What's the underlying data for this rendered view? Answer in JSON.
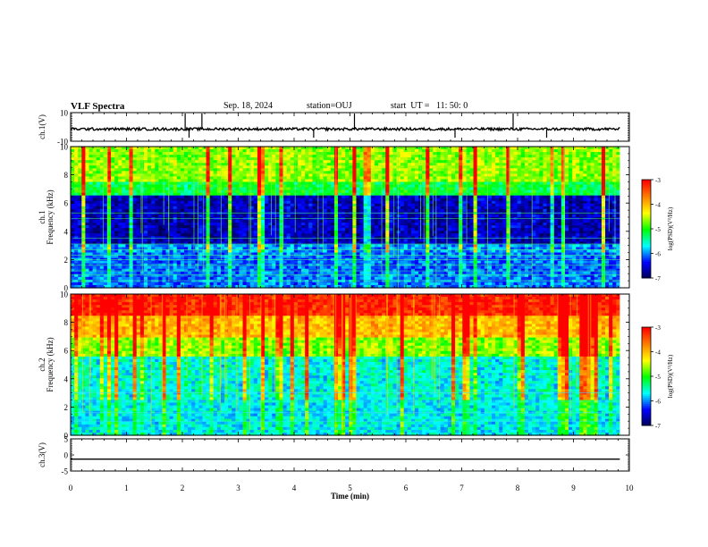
{
  "header": {
    "title": "VLF Spectra",
    "date": "Sep. 18, 2024",
    "station": "station=OUJ",
    "start_ut": "start  UT =   11: 50: 0"
  },
  "chart_data": [
    {
      "type": "line",
      "name": "ch1-waveform",
      "ylabel": "ch.1(V)",
      "ylim": [
        -10,
        10
      ],
      "yticks": [
        "10",
        "-10"
      ],
      "baseline": -1.5,
      "spikes_min": [
        2.05,
        2.12,
        2.35,
        4.35,
        5.08,
        6.88,
        7.92,
        8.52
      ],
      "xlim": [
        0,
        10
      ]
    },
    {
      "type": "heatmap",
      "name": "ch1-spectrogram",
      "ylabel": "ch.1\nFrequency (kHz)",
      "ylim": [
        0,
        10
      ],
      "yticks": [
        "0",
        "2",
        "4",
        "6",
        "8",
        "10"
      ],
      "xlim": [
        0,
        9.83
      ],
      "colorbar": {
        "label": "log(PSD)(V²/Hz)",
        "range": [
          -7,
          -3
        ],
        "ticks": [
          "-3",
          "-4",
          "-5",
          "-6",
          "-7"
        ]
      },
      "description_profile": "high power (green) above ~6.5 kHz, deep blue/black band 3-6 kHz, blue/cyan with horizontal interference lines below 3 kHz"
    },
    {
      "type": "heatmap",
      "name": "ch2-spectrogram",
      "ylabel": "ch.2\nFrequency (kHz)",
      "ylim": [
        0,
        10
      ],
      "yticks": [
        "0",
        "2",
        "4",
        "6",
        "8",
        "10"
      ],
      "xlim": [
        0,
        9.83
      ],
      "colorbar": {
        "label": "log(PSD)(V²/Hz)",
        "range": [
          -7,
          -3
        ],
        "ticks": [
          "-3",
          "-4",
          "-5",
          "-6",
          "-7"
        ]
      },
      "description_profile": "red/orange above ~8 kHz, yellow-green 5.5-8 kHz, cyan/blue below 5 kHz"
    },
    {
      "type": "line",
      "name": "ch3-waveform",
      "ylabel": "ch.3(V)",
      "ylim": [
        -5,
        5
      ],
      "yticks": [
        "5",
        "0",
        "-5"
      ],
      "baseline": -1.3,
      "xlim": [
        0,
        10
      ],
      "xlabel": "Time (min)",
      "xticks": [
        "0",
        "1",
        "2",
        "3",
        "4",
        "5",
        "6",
        "7",
        "8",
        "9",
        "10"
      ]
    }
  ],
  "colors": {
    "scale": [
      "#000050",
      "#0000ff",
      "#00ffff",
      "#00ff00",
      "#ffff00",
      "#ff7f00",
      "#ff0000"
    ],
    "axis": "#000000",
    "trace": "#000000"
  }
}
